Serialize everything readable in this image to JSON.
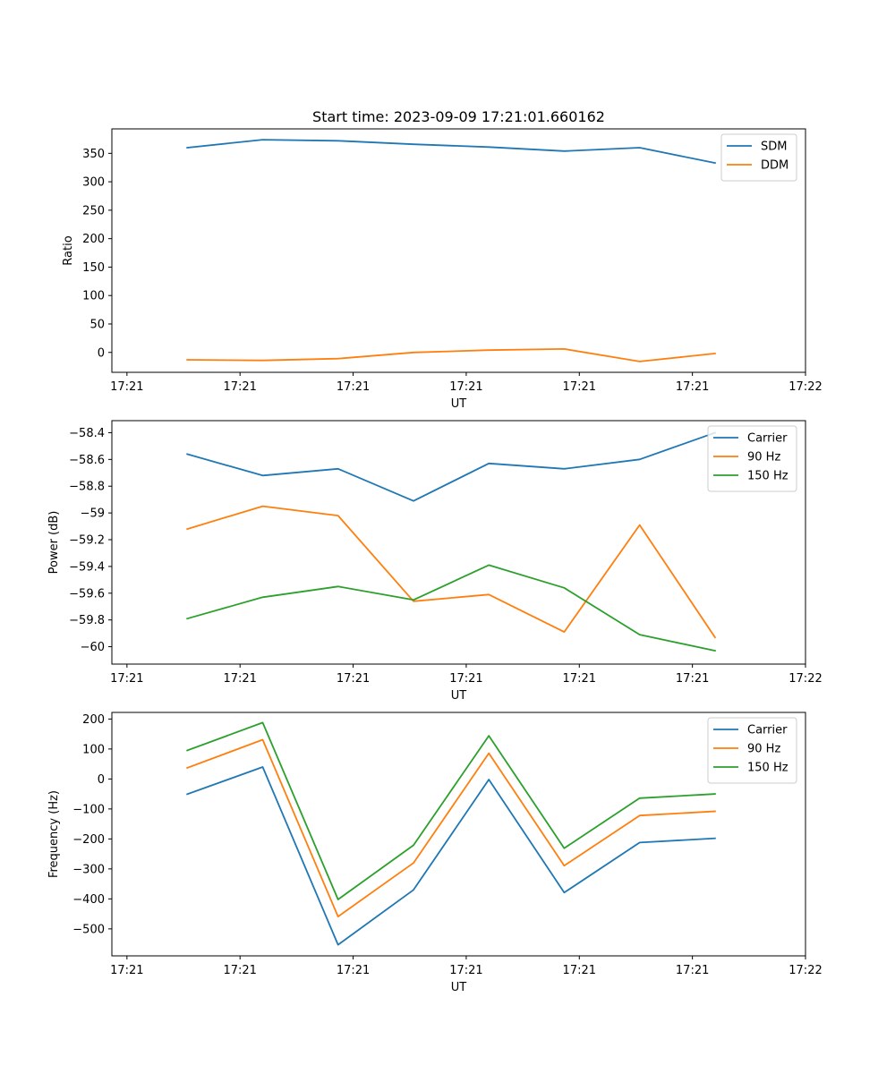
{
  "chart_data": [
    {
      "type": "line",
      "title": "Start time: 2023-09-09 17:21:01.660162",
      "xlabel": "UT",
      "ylabel": "Ratio",
      "xlim": [
        0,
        9.2
      ],
      "ylim": [
        -35,
        393
      ],
      "x": [
        1,
        2,
        3,
        4,
        5,
        6,
        7,
        8
      ],
      "xticks": [
        {
          "x": 0.2,
          "label": "17:21"
        },
        {
          "x": 1.7,
          "label": "17:21"
        },
        {
          "x": 3.2,
          "label": "17:21"
        },
        {
          "x": 4.7,
          "label": "17:21"
        },
        {
          "x": 6.2,
          "label": "17:21"
        },
        {
          "x": 7.7,
          "label": "17:21"
        },
        {
          "x": 9.2,
          "label": "17:22"
        }
      ],
      "yticks": [
        0,
        50,
        100,
        150,
        200,
        250,
        300,
        350
      ],
      "legend": "top-right",
      "series": [
        {
          "name": "SDM",
          "color": "#1f77b4",
          "values": [
            360,
            374,
            372,
            366,
            361,
            354,
            360,
            333
          ]
        },
        {
          "name": "DDM",
          "color": "#ff7f0e",
          "values": [
            -13,
            -14,
            -11,
            0,
            4,
            6,
            -16,
            -2
          ]
        }
      ]
    },
    {
      "type": "line",
      "title": "",
      "xlabel": "UT",
      "ylabel": "Power (dB)",
      "xlim": [
        0,
        9.2
      ],
      "ylim": [
        -60.13,
        -58.31
      ],
      "x": [
        1,
        2,
        3,
        4,
        5,
        6,
        7,
        8
      ],
      "xticks": [
        {
          "x": 0.2,
          "label": "17:21"
        },
        {
          "x": 1.7,
          "label": "17:21"
        },
        {
          "x": 3.2,
          "label": "17:21"
        },
        {
          "x": 4.7,
          "label": "17:21"
        },
        {
          "x": 6.2,
          "label": "17:21"
        },
        {
          "x": 7.7,
          "label": "17:21"
        },
        {
          "x": 9.2,
          "label": "17:22"
        }
      ],
      "yticks": [
        -60.0,
        -59.8,
        -59.6,
        -59.4,
        -59.2,
        -59.0,
        -58.8,
        -58.6,
        -58.4
      ],
      "legend": "top-right",
      "series": [
        {
          "name": "Carrier",
          "color": "#1f77b4",
          "values": [
            -58.56,
            -58.72,
            -58.67,
            -58.91,
            -58.63,
            -58.67,
            -58.6,
            -58.4
          ]
        },
        {
          "name": "90 Hz",
          "color": "#ff7f0e",
          "values": [
            -59.12,
            -58.95,
            -59.02,
            -59.66,
            -59.61,
            -59.89,
            -59.09,
            -59.93
          ]
        },
        {
          "name": "150 Hz",
          "color": "#2ca02c",
          "values": [
            -59.79,
            -59.63,
            -59.55,
            -59.65,
            -59.39,
            -59.56,
            -59.91,
            -60.03
          ]
        }
      ]
    },
    {
      "type": "line",
      "title": "",
      "xlabel": "UT",
      "ylabel": "Frequency (Hz)",
      "xlim": [
        0,
        9.2
      ],
      "ylim": [
        -590,
        222
      ],
      "x": [
        1,
        2,
        3,
        4,
        5,
        6,
        7,
        8
      ],
      "xticks": [
        {
          "x": 0.2,
          "label": "17:21"
        },
        {
          "x": 1.7,
          "label": "17:21"
        },
        {
          "x": 3.2,
          "label": "17:21"
        },
        {
          "x": 4.7,
          "label": "17:21"
        },
        {
          "x": 6.2,
          "label": "17:21"
        },
        {
          "x": 7.7,
          "label": "17:21"
        },
        {
          "x": 9.2,
          "label": "17:22"
        }
      ],
      "yticks": [
        -500,
        -400,
        -300,
        -200,
        -100,
        0,
        100,
        200
      ],
      "legend": "top-right",
      "series": [
        {
          "name": "Carrier",
          "color": "#1f77b4",
          "values": [
            -51,
            40,
            -553,
            -370,
            -2,
            -379,
            -212,
            -198
          ]
        },
        {
          "name": "90 Hz",
          "color": "#ff7f0e",
          "values": [
            37,
            131,
            -459,
            -280,
            86,
            -289,
            -122,
            -108
          ]
        },
        {
          "name": "150 Hz",
          "color": "#2ca02c",
          "values": [
            95,
            188,
            -402,
            -221,
            144,
            -231,
            -64,
            -50
          ]
        }
      ]
    }
  ]
}
